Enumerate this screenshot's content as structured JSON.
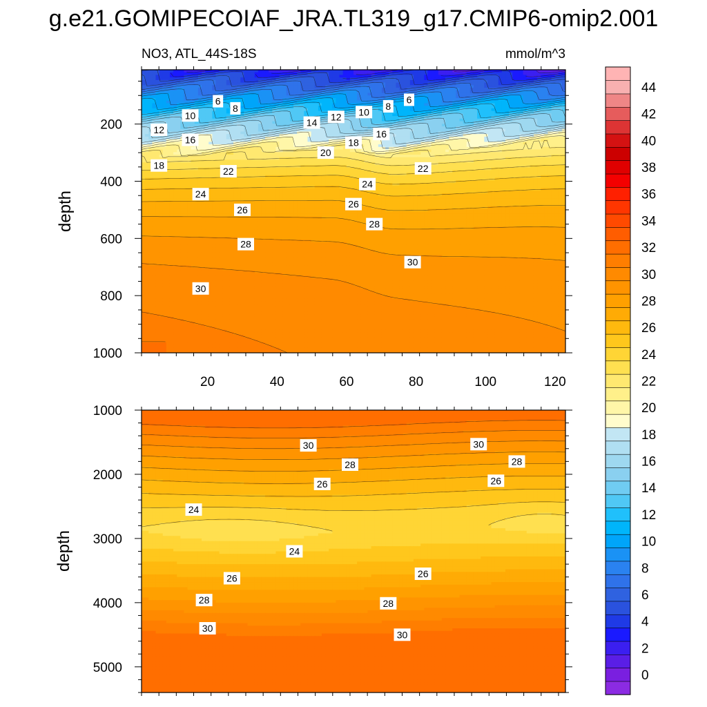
{
  "title": "g.e21.GOMIPECOIAF_JRA.TL319_g17.CMIP6-omip2.001",
  "variable_label": "NO3, ATL_44S-18S",
  "units_label": "mmol/m^3",
  "chart_data": {
    "type": "heatmap",
    "description_units": "NO3 concentration (mmol/m^3) vs latitude index (x) and depth (y)",
    "colorbar": {
      "ticks": [
        0,
        2,
        4,
        6,
        8,
        10,
        12,
        14,
        16,
        18,
        20,
        22,
        24,
        26,
        28,
        30,
        32,
        34,
        36,
        38,
        40,
        42,
        44
      ],
      "levels_min": -1,
      "levels_max": 46,
      "level_step": 1,
      "colors": [
        "#8b2be2",
        "#7a1fe0",
        "#5a1ee6",
        "#3b1ff0",
        "#1a1aff",
        "#1f3ae6",
        "#2a52de",
        "#2f62e0",
        "#2f72ea",
        "#2a82f0",
        "#1a92f5",
        "#00a5fa",
        "#00b5fb",
        "#20c0fb",
        "#50c8f5",
        "#70ccf2",
        "#8ad0f0",
        "#9ed8f0",
        "#b0dff2",
        "#c2e6f4",
        "#fffccc",
        "#fff6a8",
        "#fff08a",
        "#ffe870",
        "#ffe050",
        "#ffd535",
        "#ffc71c",
        "#ffb90e",
        "#ffab05",
        "#ffa000",
        "#ff9400",
        "#ff8a00",
        "#ff7e00",
        "#ff6e00",
        "#ff5d00",
        "#ff4a00",
        "#ff3600",
        "#ff2000",
        "#f40000",
        "#e00000",
        "#cc0000",
        "#d41212",
        "#dd3434",
        "#e65c5c",
        "#ef8686",
        "#f8b0b0",
        "#ffb4b4"
      ]
    },
    "upper_panel": {
      "x_ticks": [
        20,
        40,
        60,
        80,
        100,
        120
      ],
      "x_range": [
        1,
        123
      ],
      "y_label": "depth",
      "y_ticks": [
        200,
        400,
        600,
        800,
        1000
      ],
      "y_range": [
        10,
        1000
      ],
      "contour_labels": [
        {
          "text": "6",
          "x": 23,
          "y": 120
        },
        {
          "text": "8",
          "x": 28,
          "y": 145
        },
        {
          "text": "10",
          "x": 15,
          "y": 170
        },
        {
          "text": "12",
          "x": 6,
          "y": 220
        },
        {
          "text": "16",
          "x": 15,
          "y": 255
        },
        {
          "text": "18",
          "x": 6,
          "y": 345
        },
        {
          "text": "22",
          "x": 26,
          "y": 365
        },
        {
          "text": "24",
          "x": 18,
          "y": 445
        },
        {
          "text": "26",
          "x": 30,
          "y": 500
        },
        {
          "text": "28",
          "x": 31,
          "y": 620
        },
        {
          "text": "30",
          "x": 18,
          "y": 775
        },
        {
          "text": "14",
          "x": 50,
          "y": 195
        },
        {
          "text": "12",
          "x": 57,
          "y": 175
        },
        {
          "text": "10",
          "x": 65,
          "y": 158
        },
        {
          "text": "8",
          "x": 72,
          "y": 138
        },
        {
          "text": "6",
          "x": 78,
          "y": 115
        },
        {
          "text": "16",
          "x": 70,
          "y": 235
        },
        {
          "text": "18",
          "x": 62,
          "y": 265
        },
        {
          "text": "20",
          "x": 54,
          "y": 300
        },
        {
          "text": "22",
          "x": 82,
          "y": 355
        },
        {
          "text": "24",
          "x": 66,
          "y": 410
        },
        {
          "text": "26",
          "x": 62,
          "y": 480
        },
        {
          "text": "28",
          "x": 68,
          "y": 550
        },
        {
          "text": "30",
          "x": 79,
          "y": 683
        }
      ]
    },
    "lower_panel": {
      "y_label": "depth",
      "y_ticks": [
        1000,
        2000,
        3000,
        4000,
        5000
      ],
      "y_range": [
        1000,
        5400
      ],
      "contour_labels": [
        {
          "text": "30",
          "x": 49,
          "y": 1550
        },
        {
          "text": "30",
          "x": 98,
          "y": 1530
        },
        {
          "text": "28",
          "x": 61,
          "y": 1850
        },
        {
          "text": "28",
          "x": 109,
          "y": 1800
        },
        {
          "text": "26",
          "x": 53,
          "y": 2150
        },
        {
          "text": "26",
          "x": 103,
          "y": 2100
        },
        {
          "text": "24",
          "x": 16,
          "y": 2550
        },
        {
          "text": "24",
          "x": 45,
          "y": 3200
        },
        {
          "text": "26",
          "x": 27,
          "y": 3620
        },
        {
          "text": "26",
          "x": 82,
          "y": 3550
        },
        {
          "text": "28",
          "x": 19,
          "y": 3960
        },
        {
          "text": "28",
          "x": 72,
          "y": 4010
        },
        {
          "text": "30",
          "x": 20,
          "y": 4400
        },
        {
          "text": "30",
          "x": 76,
          "y": 4500
        }
      ]
    }
  }
}
